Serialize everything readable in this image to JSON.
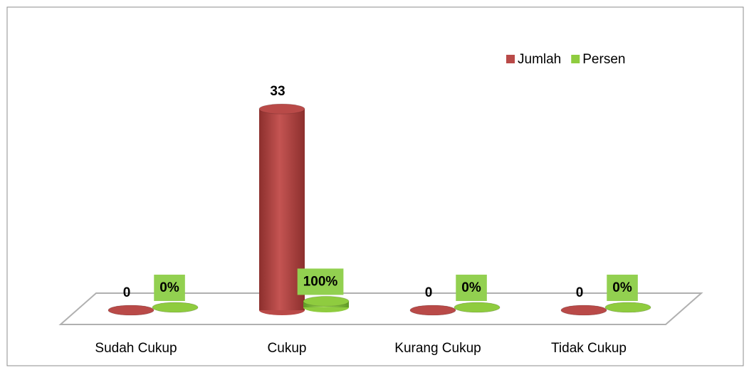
{
  "chart_data": {
    "type": "bar3d",
    "categories": [
      "Sudah Cukup",
      "Cukup",
      "Kurang Cukup",
      "Tidak Cukup"
    ],
    "series": [
      {
        "name": "Jumlah",
        "color": "#b94a48",
        "values": [
          0,
          33,
          0,
          0
        ]
      },
      {
        "name": "Persen",
        "color": "#8fcc3f",
        "values": [
          0,
          1,
          0,
          0
        ],
        "value_labels": [
          "0%",
          "100%",
          "0%",
          "0%"
        ]
      }
    ],
    "ylim": [
      0,
      35
    ],
    "legend": "top-right"
  }
}
